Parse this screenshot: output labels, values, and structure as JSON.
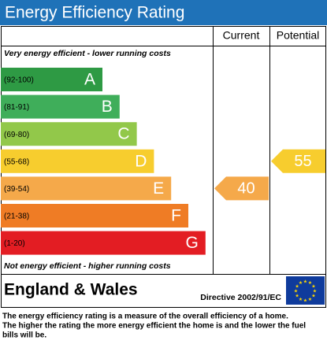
{
  "title": "Energy Efficiency Rating",
  "headers": [
    "Current",
    "Potential"
  ],
  "top_note": "Very energy efficient - lower running costs",
  "bottom_note": "Not energy efficient - higher running costs",
  "bands": [
    {
      "range": "(92-100)",
      "letter": "A",
      "color": "#2e9a44"
    },
    {
      "range": "(81-91)",
      "letter": "B",
      "color": "#3fae5a"
    },
    {
      "range": "(69-80)",
      "letter": "C",
      "color": "#92c84a"
    },
    {
      "range": "(55-68)",
      "letter": "D",
      "color": "#f7cd2e"
    },
    {
      "range": "(39-54)",
      "letter": "E",
      "color": "#f5a94a"
    },
    {
      "range": "(21-38)",
      "letter": "F",
      "color": "#ef7c25"
    },
    {
      "range": "(1-20)",
      "letter": "G",
      "color": "#e31d23"
    }
  ],
  "current": 40,
  "potential": 55,
  "region": "England & Wales",
  "directive": "Directive 2002/91/EC",
  "description": [
    "The energy efficiency rating is a measure of the overall efficiency of a home.",
    "The higher the rating the more energy efficient the home is and the lower the fuel",
    "bills will be."
  ]
}
